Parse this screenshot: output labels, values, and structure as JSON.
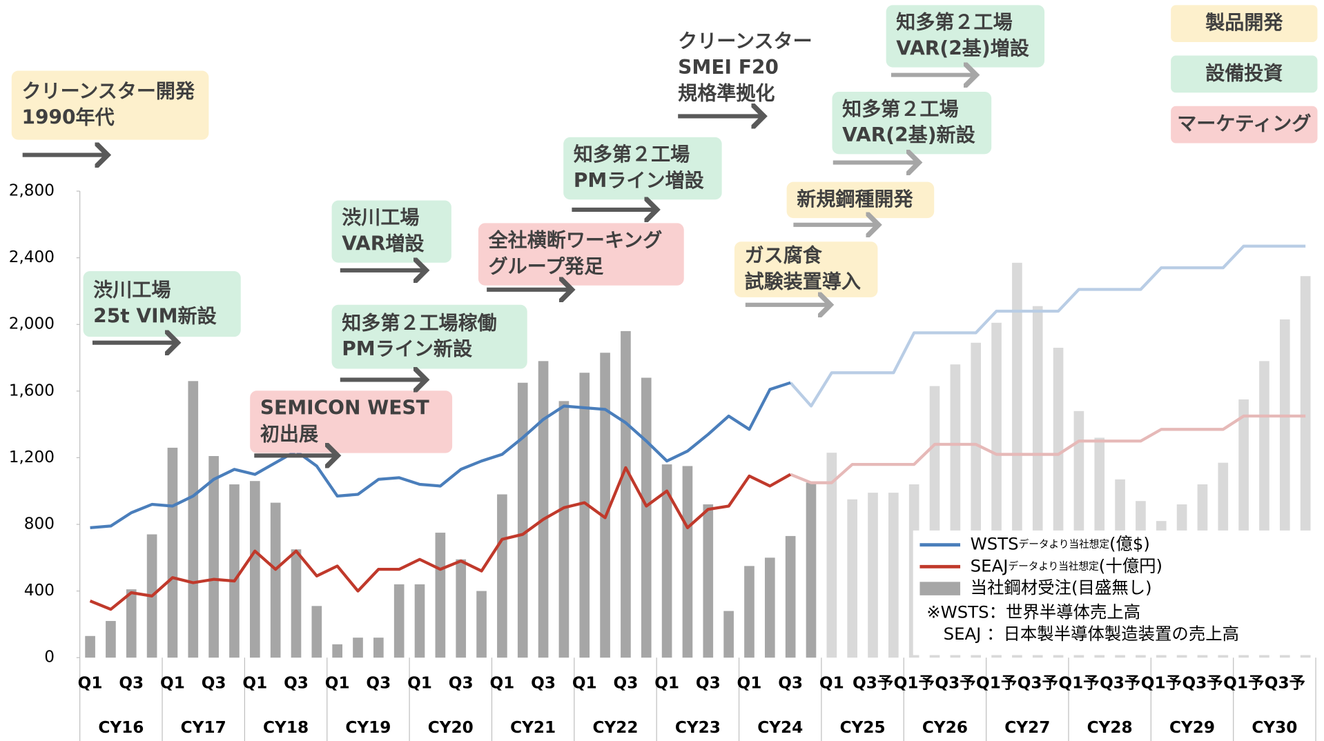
{
  "chart_data": {
    "type": "bar-line",
    "categories": [
      "Q1",
      null,
      "Q3",
      null,
      "Q1",
      null,
      "Q3",
      null,
      "Q1",
      null,
      "Q3",
      null,
      "Q1",
      null,
      "Q3",
      null,
      "Q1",
      null,
      "Q3",
      null,
      "Q1",
      null,
      "Q3",
      null,
      "Q1",
      null,
      "Q3",
      null,
      "Q1",
      null,
      "Q3",
      null,
      "Q1",
      null,
      "Q3",
      null,
      "Q1",
      null,
      "Q3予",
      null,
      "Q1予",
      null,
      "Q3予",
      null,
      "Q1予",
      null,
      "Q3予",
      null,
      "Q1予",
      null,
      "Q3予",
      null,
      "Q1予",
      null,
      "Q3予",
      null,
      "Q1予",
      null,
      "Q3予",
      null
    ],
    "years": [
      "CY16",
      "CY17",
      "CY18",
      "CY19",
      "CY20",
      "CY21",
      "CY22",
      "CY23",
      "CY24",
      "CY25",
      "CY26",
      "CY27",
      "CY28",
      "CY29",
      "CY30"
    ],
    "ylim": [
      0,
      2800
    ],
    "yticks": [
      0,
      400,
      800,
      {
        "value": 1200,
        "label": "1,200"
      },
      {
        "value": 1600,
        "label": "1,600"
      },
      {
        "value": 2000,
        "label": "2,000"
      },
      {
        "value": 2400,
        "label": "2,400"
      },
      {
        "value": 2800,
        "label": "2,800"
      }
    ],
    "series": [
      {
        "name": "当社鋼材受注(目盛無し)",
        "type": "bar",
        "color": "#a6a6a6",
        "forecast_color": "#d9d9d9",
        "values": [
          130,
          220,
          410,
          740,
          1260,
          1660,
          1210,
          1040,
          1060,
          930,
          650,
          310,
          80,
          120,
          120,
          440,
          440,
          750,
          590,
          400,
          980,
          1650,
          1780,
          1540,
          1710,
          1830,
          1960,
          1680,
          1160,
          1150,
          920,
          280,
          550,
          600,
          730,
          1050,
          null,
          null,
          null,
          null,
          null,
          null,
          null,
          null,
          null,
          null,
          null,
          null,
          null,
          null,
          null,
          null,
          null,
          null,
          null,
          null,
          null,
          null,
          null,
          null
        ],
        "forecast_values": [
          null,
          null,
          null,
          null,
          null,
          null,
          null,
          null,
          null,
          null,
          null,
          null,
          null,
          null,
          null,
          null,
          null,
          null,
          null,
          null,
          null,
          null,
          null,
          null,
          null,
          null,
          null,
          null,
          null,
          null,
          null,
          null,
          null,
          null,
          null,
          null,
          1230,
          950,
          990,
          990,
          1040,
          1630,
          1760,
          1890,
          2010,
          2370,
          2110,
          1860,
          1480,
          1320,
          1070,
          940,
          820,
          920,
          1040,
          1170,
          1550,
          1780,
          2030,
          2290
        ]
      },
      {
        "name": "WSTS",
        "name_note": "データより当社想定",
        "unit": "(億$)",
        "type": "line",
        "color": "#4a7ebb",
        "forecast_color": "#b9cde5",
        "values": [
          780,
          790,
          870,
          920,
          910,
          970,
          1070,
          1130,
          1100,
          1170,
          1240,
          1150,
          970,
          980,
          1070,
          1080,
          1040,
          1030,
          1130,
          1180,
          1220,
          1320,
          1430,
          1510,
          1500,
          1490,
          1410,
          1300,
          1180,
          1240,
          1340,
          1450,
          1370,
          1610,
          1650,
          null,
          null,
          null,
          null,
          null,
          null,
          null,
          null,
          null,
          null,
          null,
          null,
          null,
          null,
          null,
          null,
          null,
          null,
          null,
          null,
          null,
          null,
          null,
          null,
          null
        ],
        "forecast_values": [
          null,
          null,
          null,
          null,
          null,
          null,
          null,
          null,
          null,
          null,
          null,
          null,
          null,
          null,
          null,
          null,
          null,
          null,
          null,
          null,
          null,
          null,
          null,
          null,
          null,
          null,
          null,
          null,
          null,
          null,
          null,
          null,
          null,
          null,
          1650,
          1510,
          1710,
          1710,
          1710,
          1710,
          1950,
          1950,
          1950,
          1950,
          2080,
          2080,
          2080,
          2080,
          2210,
          2210,
          2210,
          2210,
          2340,
          2340,
          2340,
          2340,
          2470,
          2470,
          2470,
          2470
        ]
      },
      {
        "name": "SEAJ",
        "name_note": "データより当社想定",
        "unit": "(十億円)",
        "type": "line",
        "color": "#c0392b",
        "forecast_color": "#e6b9b8",
        "values": [
          340,
          290,
          390,
          370,
          480,
          450,
          470,
          460,
          640,
          530,
          640,
          490,
          550,
          400,
          530,
          530,
          590,
          530,
          580,
          520,
          710,
          740,
          830,
          900,
          930,
          840,
          1140,
          910,
          1000,
          780,
          890,
          910,
          1090,
          1030,
          1100,
          null,
          null,
          null,
          null,
          null,
          null,
          null,
          null,
          null,
          null,
          null,
          null,
          null,
          null,
          null,
          null,
          null,
          null,
          null,
          null,
          null,
          null,
          null,
          null,
          null
        ],
        "forecast_values": [
          null,
          null,
          null,
          null,
          null,
          null,
          null,
          null,
          null,
          null,
          null,
          null,
          null,
          null,
          null,
          null,
          null,
          null,
          null,
          null,
          null,
          null,
          null,
          null,
          null,
          null,
          null,
          null,
          null,
          null,
          null,
          null,
          null,
          null,
          1100,
          1050,
          1050,
          1160,
          1160,
          1160,
          1160,
          1280,
          1280,
          1280,
          1220,
          1220,
          1220,
          1220,
          1300,
          1300,
          1300,
          1300,
          1370,
          1370,
          1370,
          1370,
          1450,
          1450,
          1450,
          1450
        ]
      }
    ],
    "notes": [
      "※WSTS：世界半導体売上高",
      "　SEAJ ：日本製半導体製造装置の売上高"
    ],
    "key": [
      {
        "label": "製品開発",
        "color": "#fdf0cc"
      },
      {
        "label": "設備投資",
        "color": "#d4f0e0"
      },
      {
        "label": "マーケティング",
        "color": "#f9d0d0"
      }
    ],
    "annotations": [
      {
        "lines": [
          "クリーンスター開発",
          "1990年代"
        ],
        "color": "#fdf0cc"
      },
      {
        "lines": [
          "渋川工場",
          "25t VIM新設"
        ],
        "color": "#d4f0e0"
      },
      {
        "lines": [
          "SEMICON WEST",
          "初出展"
        ],
        "color": "#f9d0d0"
      },
      {
        "lines": [
          "渋川工場",
          "VAR増設"
        ],
        "color": "#d4f0e0"
      },
      {
        "lines": [
          "知多第２工場稼働",
          "PMライン新設"
        ],
        "color": "#d4f0e0"
      },
      {
        "lines": [
          "全社横断ワーキング",
          "グループ発足"
        ],
        "color": "#f9d0d0"
      },
      {
        "lines": [
          "知多第２工場",
          "PMライン増設"
        ],
        "color": "#d4f0e0"
      },
      {
        "lines": [
          "クリーンスター",
          "SMEI F20",
          "規格準拠化"
        ],
        "color": null
      },
      {
        "lines": [
          "ガス腐食",
          "試験装置導入"
        ],
        "color": "#fdf0cc"
      },
      {
        "lines": [
          "新規鋼種開発"
        ],
        "color": "#fdf0cc"
      },
      {
        "lines": [
          "知多第２工場",
          "VAR(2基)新設"
        ],
        "color": "#d4f0e0"
      },
      {
        "lines": [
          "知多第２工場",
          "VAR(2基)増設"
        ],
        "color": "#d4f0e0"
      }
    ]
  }
}
